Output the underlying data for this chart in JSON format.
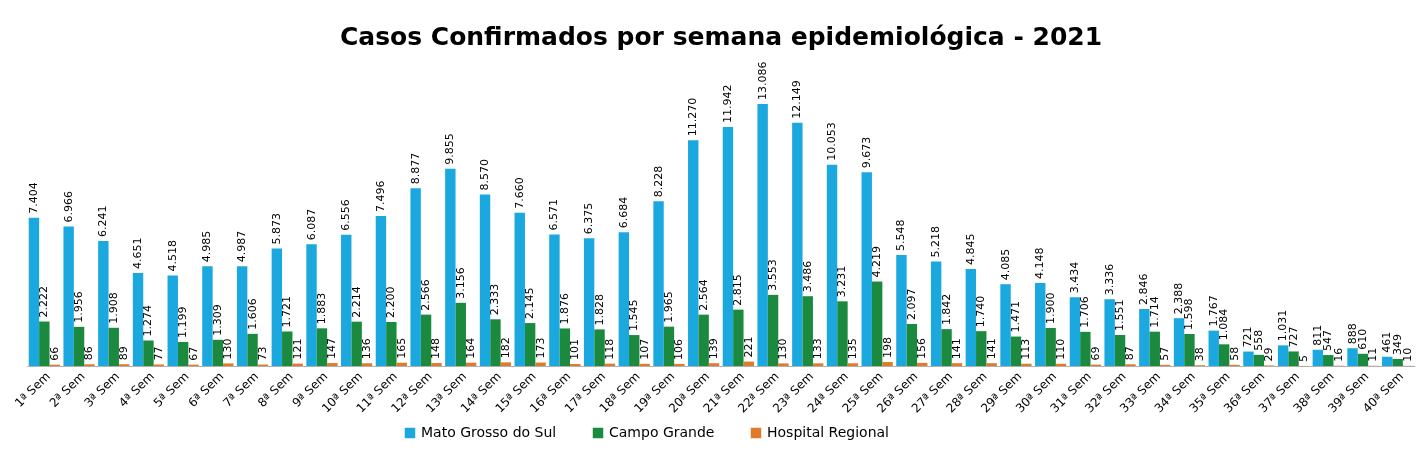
{
  "chart_data": {
    "type": "bar",
    "title": "Casos Confirmados por semana epidemiológica - 2021",
    "categories": [
      "1ª Sem",
      "2ª Sem",
      "3ª Sem",
      "4ª Sem",
      "5ª Sem",
      "6ª Sem",
      "7ª Sem",
      "8ª Sem",
      "9ª Sem",
      "10ª Sem",
      "11ª Sem",
      "12ª Sem",
      "13ª Sem",
      "14ª Sem",
      "15ª Sem",
      "16ª Sem",
      "17ª Sem",
      "18ª Sem",
      "19ª Sem",
      "20ª Sem",
      "21ª Sem",
      "22ª Sem",
      "23ª Sem",
      "24ª Sem",
      "25ª Sem",
      "26ª Sem",
      "27ª Sem",
      "28ª Sem",
      "29ª Sem",
      "30ª Sem",
      "31ª Sem",
      "32ª Sem",
      "33ª Sem",
      "34ª Sem",
      "35ª Sem",
      "36ª Sem",
      "37ª Sem",
      "38ª Sem",
      "39ª Sem",
      "40ª Sem"
    ],
    "series": [
      {
        "name": "Mato Grosso do Sul",
        "color": "#1ba8df",
        "values": [
          7404,
          6966,
          6241,
          4651,
          4518,
          4985,
          4987,
          5873,
          6087,
          6556,
          7496,
          8877,
          9855,
          8570,
          7660,
          6571,
          6375,
          6684,
          8228,
          11270,
          11942,
          13086,
          12149,
          10053,
          9673,
          5548,
          5218,
          4845,
          4085,
          4148,
          3434,
          3336,
          2846,
          2388,
          1767,
          721,
          1031,
          811,
          888,
          461
        ],
        "value_labels": [
          "7.404",
          "6.966",
          "6.241",
          "4.651",
          "4.518",
          "4.985",
          "4.987",
          "5.873",
          "6.087",
          "6.556",
          "7.496",
          "8.877",
          "9.855",
          "8.570",
          "7.660",
          "6.571",
          "6.375",
          "6.684",
          "8.228",
          "11.270",
          "11.942",
          "13.086",
          "12.149",
          "10.053",
          "9.673",
          "5.548",
          "5.218",
          "4.845",
          "4.085",
          "4.148",
          "3.434",
          "3.336",
          "2.846",
          "2.388",
          "1.767",
          "721",
          "1.031",
          "811",
          "888",
          "461"
        ]
      },
      {
        "name": "Campo Grande",
        "color": "#1c8a3e",
        "values": [
          2222,
          1956,
          1908,
          1274,
          1199,
          1309,
          1606,
          1721,
          1883,
          2214,
          2200,
          2566,
          3156,
          2333,
          2145,
          1876,
          1828,
          1545,
          1965,
          2564,
          2815,
          3553,
          3486,
          3231,
          4219,
          2097,
          1842,
          1740,
          1471,
          1900,
          1706,
          1551,
          1714,
          1598,
          1084,
          558,
          727,
          547,
          610,
          349
        ],
        "value_labels": [
          "2.222",
          "1.956",
          "1.908",
          "1.274",
          "1.199",
          "1.309",
          "1.606",
          "1.721",
          "1.883",
          "2.214",
          "2.200",
          "2.566",
          "3.156",
          "2.333",
          "2.145",
          "1.876",
          "1.828",
          "1.545",
          "1.965",
          "2.564",
          "2.815",
          "3.553",
          "3.486",
          "3.231",
          "4.219",
          "2.097",
          "1.842",
          "1.740",
          "1.471",
          "1.900",
          "1.706",
          "1.551",
          "1.714",
          "1.598",
          "1.084",
          "558",
          "727",
          "547",
          "610",
          "349"
        ]
      },
      {
        "name": "Hospital Regional",
        "color": "#e07b2b",
        "values": [
          66,
          86,
          89,
          77,
          67,
          130,
          73,
          121,
          147,
          136,
          165,
          148,
          164,
          182,
          173,
          101,
          118,
          107,
          106,
          139,
          221,
          130,
          133,
          135,
          198,
          156,
          141,
          141,
          113,
          110,
          69,
          87,
          57,
          38,
          58,
          29,
          5,
          16,
          11,
          10
        ],
        "value_labels": [
          "66",
          "86",
          "89",
          "77",
          "67",
          "130",
          "73",
          "121",
          "147",
          "136",
          "165",
          "148",
          "164",
          "182",
          "173",
          "101",
          "118",
          "107",
          "106",
          "139",
          "221",
          "130",
          "133",
          "135",
          "198",
          "156",
          "141",
          "141",
          "113",
          "110",
          "69",
          "87",
          "57",
          "38",
          "58",
          "29",
          "5",
          "16",
          "11",
          "10"
        ]
      }
    ],
    "legend": "bottom",
    "tick_labels": "x"
  }
}
